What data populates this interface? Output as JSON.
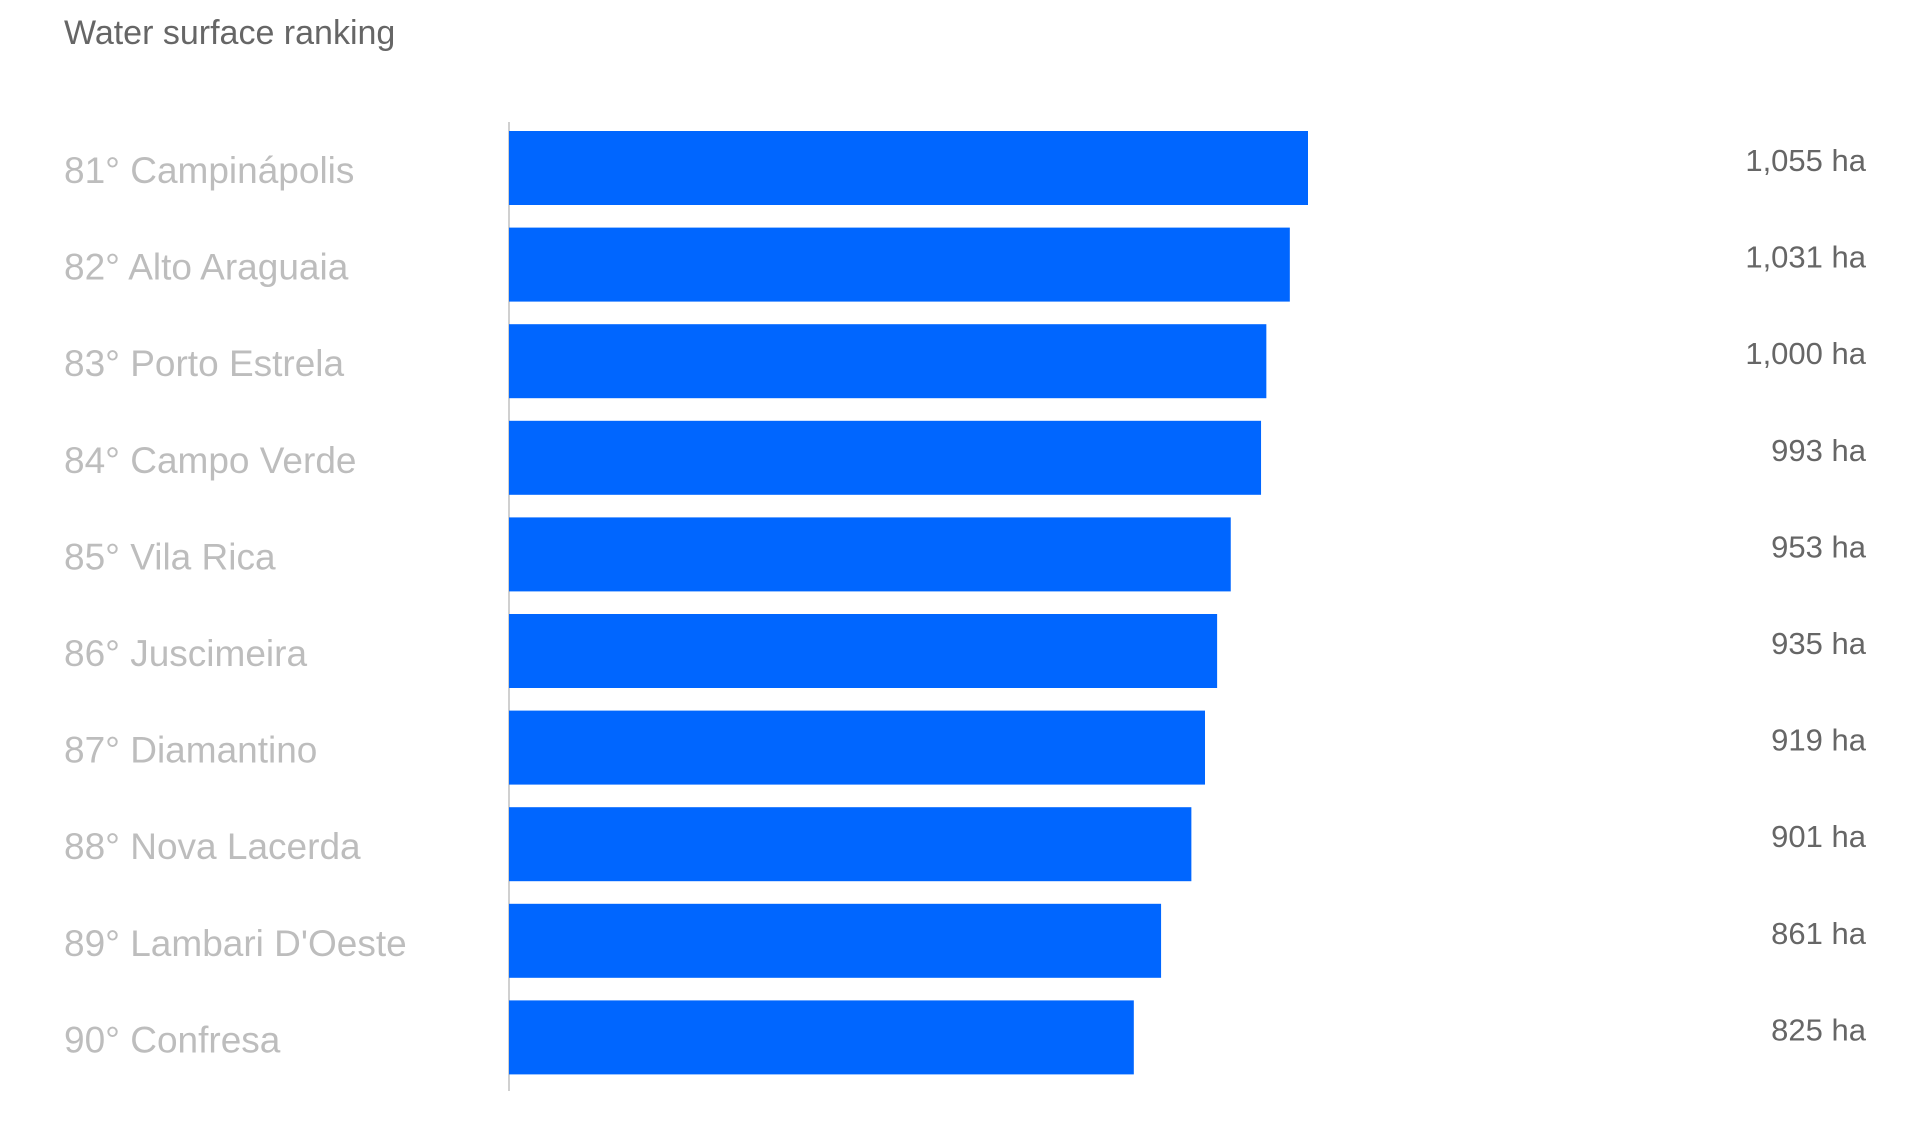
{
  "title": "Water surface ranking",
  "chart_data": {
    "type": "bar",
    "orientation": "horizontal",
    "title": "Water surface ranking",
    "categories": [
      "81° Campinápolis",
      "82° Alto Araguaia",
      "83° Porto Estrela",
      "84° Campo Verde",
      "85° Vila Rica",
      "86° Juscimeira",
      "87° Diamantino",
      "88° Nova Lacerda",
      "89° Lambari D'Oeste",
      "90° Confresa"
    ],
    "values": [
      1055,
      1031,
      1000,
      993,
      953,
      935,
      919,
      901,
      861,
      825
    ],
    "value_labels": [
      "1,055 ha",
      "1,031 ha",
      "1,000 ha",
      "993 ha",
      "953 ha",
      "935 ha",
      "919 ha",
      "901 ha",
      "861 ha",
      "825 ha"
    ],
    "unit": "ha",
    "xlim": [
      0,
      1055
    ],
    "grid": false,
    "bar_color": "#0066ff"
  }
}
